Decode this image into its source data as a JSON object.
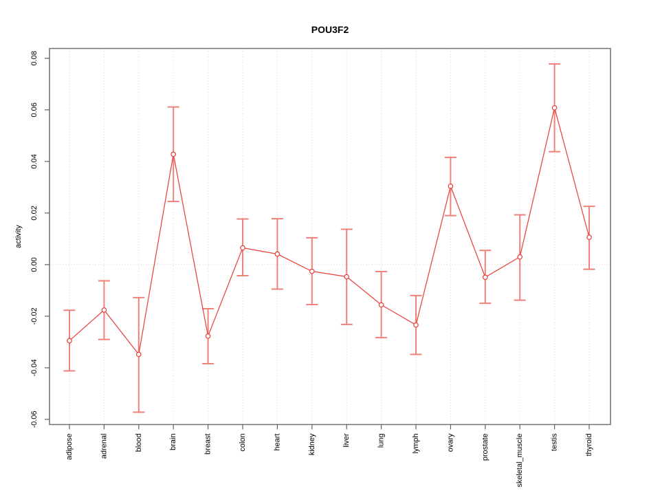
{
  "chart_data": {
    "type": "line",
    "subtype": "errorbar-line",
    "title": "POU3F2",
    "xlabel": "",
    "ylabel": "activity",
    "legend_position": "none",
    "categories": [
      "adipose",
      "adrenal",
      "blood",
      "brain",
      "breast",
      "colon",
      "heart",
      "kidney",
      "liver",
      "lung",
      "lymph",
      "ovary",
      "prostate",
      "skeletal_muscle",
      "testis",
      "thyroid"
    ],
    "series": [
      {
        "name": "activity",
        "values": [
          -0.0295,
          -0.0176,
          -0.0348,
          0.0428,
          -0.0277,
          0.0065,
          0.0041,
          -0.0026,
          -0.0047,
          -0.0156,
          -0.0234,
          0.0304,
          -0.0049,
          0.003,
          0.0608,
          0.0106
        ],
        "error_low": [
          -0.0412,
          -0.029,
          -0.0572,
          0.0245,
          -0.0384,
          -0.0043,
          -0.0095,
          -0.0155,
          -0.0232,
          -0.0283,
          -0.0348,
          0.019,
          -0.015,
          -0.0138,
          0.0438,
          -0.0018
        ],
        "error_high": [
          -0.0177,
          -0.0063,
          -0.0128,
          0.0611,
          -0.0171,
          0.0177,
          0.0178,
          0.0104,
          0.0137,
          -0.0027,
          -0.012,
          0.0416,
          0.0055,
          0.0193,
          0.0778,
          0.0226
        ]
      }
    ],
    "ylim": [
      -0.062,
      0.0838
    ],
    "yticks": [
      {
        "label": "0.08",
        "value": 0.08
      },
      {
        "label": "0.06",
        "value": 0.06
      },
      {
        "label": "0.04",
        "value": 0.04
      },
      {
        "label": "0.02",
        "value": 0.02
      },
      {
        "label": "0.00",
        "value": 0.0
      },
      {
        "label": "-0.02",
        "value": -0.02
      },
      {
        "label": "-0.04",
        "value": -0.04
      },
      {
        "label": "-0.06",
        "value": -0.06
      }
    ],
    "grid": {
      "vertical_dotted_per_category": true,
      "horizontal_dotted_at_zero": true
    },
    "colors": {
      "series": "#e8423c",
      "error_bars": "#f0807a",
      "grid": "#dcdcdc",
      "axis_box": "#787878",
      "tick": "#606060",
      "text": "#000000",
      "background": "#ffffff"
    }
  }
}
